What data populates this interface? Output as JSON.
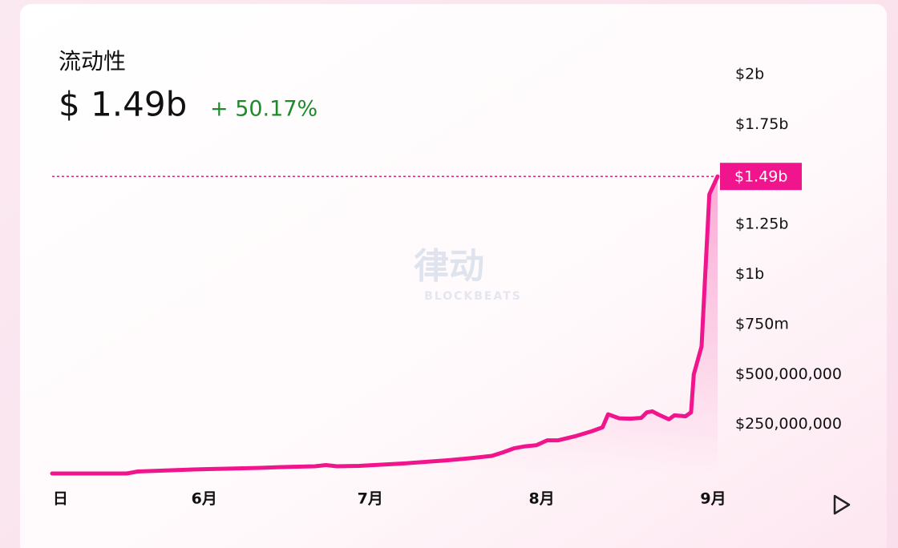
{
  "chart_data": {
    "type": "line",
    "title": "流动性",
    "current_value": "$ 1.49b",
    "change": "+ 50.17%",
    "marker_label": "$1.49b",
    "watermark": "律动",
    "watermark_sub": "BLOCKBEATS",
    "color": "#f0158c",
    "x": [
      -27.5,
      -20,
      -14,
      -12,
      -8,
      -2,
      4,
      10,
      14,
      20,
      22,
      24,
      28,
      32,
      36,
      40,
      44,
      48,
      52,
      54,
      56,
      58,
      60,
      62,
      64,
      67,
      70,
      72,
      73,
      75,
      77,
      79,
      80,
      81,
      82,
      84,
      85,
      87,
      88,
      88.5,
      89.9,
      91.3,
      92.8
    ],
    "values": [
      4000000,
      4000000,
      4000000,
      14000000,
      18000000,
      24000000,
      28000000,
      32000000,
      36000000,
      40000000,
      46000000,
      40000000,
      42000000,
      48000000,
      54000000,
      62000000,
      70000000,
      80000000,
      92000000,
      110000000,
      130000000,
      140000000,
      145000000,
      170000000,
      170000000,
      190000000,
      215000000,
      235000000,
      300000000,
      280000000,
      278000000,
      282000000,
      310000000,
      315000000,
      300000000,
      275000000,
      295000000,
      290000000,
      310000000,
      500000000,
      640000000,
      1400000000,
      1490000000
    ],
    "xlim": [
      -27.5,
      92.8
    ],
    "xticks": [
      {
        "value": -26,
        "label": "日"
      },
      {
        "value": 0,
        "label": "6月"
      },
      {
        "value": 30,
        "label": "7月"
      },
      {
        "value": 61,
        "label": "8月"
      },
      {
        "value": 92,
        "label": "9月"
      }
    ],
    "ylim": [
      0,
      2000000000
    ],
    "yticks": [
      {
        "value": 250000000,
        "label": "$250,000,000"
      },
      {
        "value": 500000000,
        "label": "$500,000,000"
      },
      {
        "value": 750000000,
        "label": "$750m"
      },
      {
        "value": 1000000000,
        "label": "$1b"
      },
      {
        "value": 1250000000,
        "label": "$1.25b"
      },
      {
        "value": 1750000000,
        "label": "$1.75b"
      },
      {
        "value": 2000000000,
        "label": "$2b"
      }
    ]
  }
}
